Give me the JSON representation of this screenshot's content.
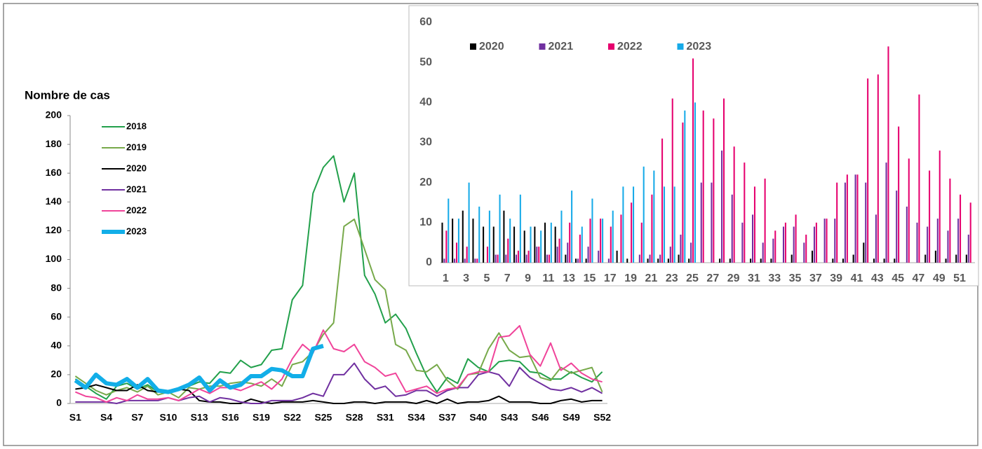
{
  "chart_data": [
    {
      "type": "line",
      "ylabel": "Nombre  de cas",
      "legend": "upper left",
      "grid": false,
      "categories": [
        "S1",
        null,
        null,
        "S4",
        null,
        null,
        "S7",
        null,
        null,
        "S10",
        null,
        null,
        "S13",
        null,
        null,
        "S16",
        null,
        null,
        "S19",
        null,
        null,
        "S22",
        null,
        null,
        "S25",
        null,
        null,
        "S28",
        null,
        null,
        "S31",
        null,
        null,
        "S34",
        null,
        null,
        "S37",
        null,
        null,
        "S40",
        null,
        null,
        "S43",
        null,
        null,
        "S46",
        null,
        null,
        "S49",
        null,
        null,
        "S52"
      ],
      "ylim": [
        0,
        200
      ],
      "yticks": [
        0,
        20,
        40,
        60,
        80,
        100,
        120,
        140,
        160,
        180,
        200
      ],
      "series": [
        {
          "name": "2018",
          "color": "#22a04b",
          "linewidth": 2,
          "values": [
            17,
            12,
            7,
            3,
            12,
            14,
            10,
            13,
            8,
            8,
            10,
            12,
            15,
            14,
            22,
            21,
            30,
            25,
            27,
            37,
            38,
            72,
            82,
            146,
            164,
            172,
            140,
            160,
            89,
            76,
            56,
            62,
            52,
            35,
            19,
            8,
            18,
            14,
            31,
            25,
            22,
            29,
            30,
            29,
            22,
            21,
            17,
            17,
            22,
            18,
            15,
            22
          ]
        },
        {
          "name": "2019",
          "color": "#77a94a",
          "linewidth": 2,
          "values": [
            19,
            14,
            9,
            6,
            9,
            11,
            8,
            12,
            6,
            8,
            4,
            11,
            10,
            12,
            12,
            14,
            15,
            14,
            12,
            17,
            12,
            27,
            29,
            36,
            48,
            56,
            123,
            128,
            107,
            86,
            79,
            41,
            37,
            23,
            22,
            27,
            16,
            10,
            20,
            21,
            38,
            49,
            37,
            32,
            33,
            18,
            16,
            25,
            21,
            23,
            25,
            8
          ]
        },
        {
          "name": "2020",
          "color": "#000000",
          "linewidth": 2,
          "values": [
            10,
            11,
            13,
            11,
            9,
            9,
            13,
            9,
            8,
            9,
            10,
            9,
            2,
            1,
            1,
            0,
            0,
            3,
            1,
            0,
            1,
            1,
            1,
            2,
            1,
            0,
            0,
            1,
            1,
            0,
            1,
            1,
            1,
            0,
            2,
            0,
            3,
            0,
            1,
            1,
            2,
            5,
            1,
            1,
            1,
            0,
            0,
            2,
            3,
            1,
            2,
            2
          ]
        },
        {
          "name": "2021",
          "color": "#7030a0",
          "linewidth": 2,
          "values": [
            1,
            1,
            1,
            1,
            0,
            2,
            2,
            2,
            2,
            4,
            2,
            4,
            5,
            1,
            4,
            3,
            1,
            0,
            0,
            2,
            2,
            2,
            4,
            7,
            5,
            20,
            20,
            28,
            17,
            10,
            12,
            5,
            6,
            9,
            9,
            5,
            9,
            11,
            11,
            20,
            22,
            20,
            12,
            25,
            18,
            14,
            10,
            9,
            11,
            8,
            11,
            7
          ]
        },
        {
          "name": "2022",
          "color": "#f0449a",
          "linewidth": 2,
          "values": [
            8,
            5,
            4,
            1,
            4,
            2,
            6,
            3,
            3,
            4,
            2,
            6,
            10,
            7,
            11,
            11,
            9,
            12,
            15,
            10,
            17,
            31,
            41,
            35,
            51,
            38,
            36,
            41,
            29,
            25,
            19,
            21,
            8,
            10,
            12,
            7,
            10,
            11,
            20,
            22,
            22,
            46,
            47,
            54,
            34,
            26,
            42,
            23,
            28,
            21,
            17,
            15
          ]
        },
        {
          "name": "2023",
          "color": "#12aee8",
          "linewidth": 6,
          "values": [
            16,
            11,
            20,
            14,
            13,
            17,
            11,
            17,
            9,
            8,
            10,
            13,
            18,
            9,
            16,
            11,
            13,
            19,
            19,
            24,
            23,
            19,
            19,
            38,
            40,
            null,
            null,
            null,
            null,
            null,
            null,
            null,
            null,
            null,
            null,
            null,
            null,
            null,
            null,
            null,
            null,
            null,
            null,
            null,
            null,
            null,
            null,
            null,
            null,
            null,
            null,
            null
          ]
        }
      ]
    },
    {
      "type": "bar",
      "legend": "upper left",
      "grid": false,
      "categories": [
        1,
        null,
        3,
        null,
        5,
        null,
        7,
        null,
        9,
        null,
        11,
        null,
        13,
        null,
        15,
        null,
        17,
        null,
        19,
        null,
        21,
        null,
        23,
        null,
        25,
        null,
        27,
        null,
        29,
        null,
        31,
        null,
        33,
        null,
        35,
        null,
        37,
        null,
        39,
        null,
        41,
        null,
        43,
        null,
        45,
        null,
        47,
        null,
        49,
        null,
        51,
        null
      ],
      "ylim": [
        0,
        60
      ],
      "yticks": [
        0,
        10,
        20,
        30,
        40,
        50,
        60
      ],
      "series": [
        {
          "name": "2020",
          "color": "#000000",
          "values": [
            10,
            11,
            13,
            11,
            9,
            9,
            13,
            9,
            8,
            9,
            10,
            9,
            2,
            1,
            1,
            0,
            0,
            3,
            1,
            0,
            1,
            1,
            1,
            2,
            1,
            0,
            0,
            1,
            1,
            0,
            1,
            1,
            1,
            0,
            2,
            0,
            3,
            0,
            1,
            1,
            2,
            5,
            1,
            1,
            1,
            0,
            0,
            2,
            3,
            1,
            2,
            2
          ]
        },
        {
          "name": "2021",
          "color": "#7030a0",
          "values": [
            1,
            1,
            1,
            1,
            0,
            2,
            2,
            2,
            2,
            4,
            2,
            4,
            5,
            1,
            4,
            3,
            1,
            0,
            0,
            2,
            2,
            2,
            4,
            7,
            5,
            20,
            20,
            28,
            17,
            10,
            12,
            5,
            6,
            9,
            9,
            5,
            9,
            11,
            11,
            20,
            22,
            20,
            12,
            25,
            18,
            14,
            10,
            9,
            11,
            8,
            11,
            7
          ]
        },
        {
          "name": "2022",
          "color": "#e6006e",
          "values": [
            8,
            5,
            4,
            1,
            4,
            2,
            6,
            3,
            3,
            4,
            2,
            6,
            10,
            7,
            11,
            11,
            9,
            12,
            15,
            10,
            17,
            31,
            41,
            35,
            51,
            38,
            36,
            41,
            29,
            25,
            19,
            21,
            8,
            10,
            12,
            7,
            10,
            11,
            20,
            22,
            22,
            46,
            47,
            54,
            34,
            26,
            42,
            23,
            28,
            21,
            17,
            15
          ]
        },
        {
          "name": "2023",
          "color": "#16aae8",
          "values": [
            16,
            11,
            20,
            14,
            13,
            17,
            11,
            17,
            9,
            8,
            10,
            13,
            18,
            9,
            16,
            11,
            13,
            19,
            19,
            24,
            23,
            19,
            19,
            38,
            40,
            null,
            null,
            null,
            null,
            null,
            null,
            null,
            null,
            null,
            null,
            null,
            null,
            null,
            null,
            null,
            null,
            null,
            null,
            null,
            null,
            null,
            null,
            null,
            null,
            null,
            null,
            null
          ]
        }
      ]
    }
  ]
}
